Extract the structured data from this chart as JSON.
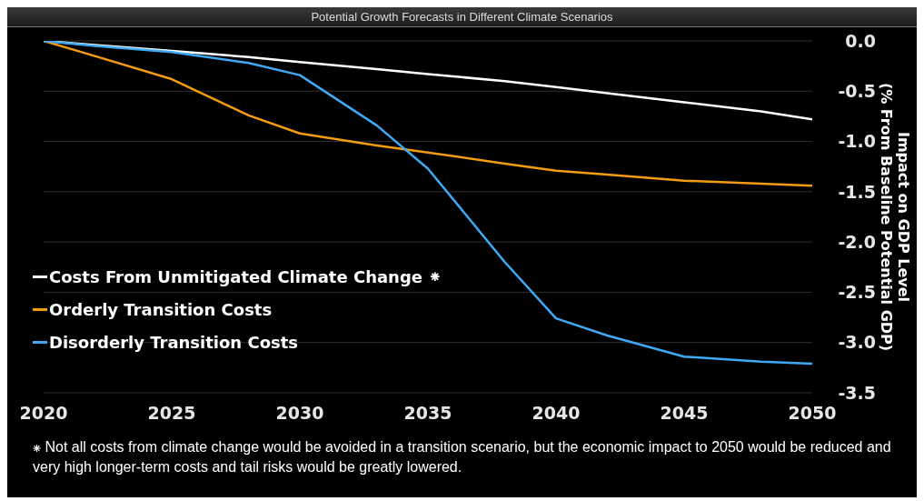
{
  "chart_data": {
    "type": "line",
    "title": "Potential Growth Forecasts in Different Climate Scenarios",
    "ylabel": "Impact on GDP Level (% From Baseline Potential GDP)",
    "x": [
      2020,
      2022,
      2025,
      2028,
      2030,
      2033,
      2035,
      2038,
      2040,
      2042,
      2045,
      2048,
      2050
    ],
    "series": [
      {
        "name": "Costs From Unmitigated Climate Change ⁕",
        "color": "#ffffff",
        "values": [
          0,
          -0.04,
          -0.1,
          -0.16,
          -0.21,
          -0.28,
          -0.33,
          -0.4,
          -0.46,
          -0.52,
          -0.61,
          -0.7,
          -0.78
        ]
      },
      {
        "name": "Orderly Transition Costs",
        "color": "#f39c12",
        "values": [
          0,
          -0.15,
          -0.38,
          -0.74,
          -0.92,
          -1.04,
          -1.11,
          -1.22,
          -1.29,
          -1.33,
          -1.39,
          -1.42,
          -1.44
        ]
      },
      {
        "name": "Disorderly Transition Costs",
        "color": "#3fa9f5",
        "values": [
          0,
          -0.05,
          -0.11,
          -0.22,
          -0.34,
          -0.84,
          -1.27,
          -2.2,
          -2.76,
          -2.93,
          -3.14,
          -3.19,
          -3.21
        ]
      }
    ],
    "xlim": [
      2020,
      2050
    ],
    "xticks": [
      2020,
      2025,
      2030,
      2035,
      2040,
      2045,
      2050
    ],
    "ylim": [
      -3.5,
      0
    ],
    "yticks": [
      {
        "value": 0,
        "label": "0.0"
      },
      -0.5,
      {
        "value": -1,
        "label": "-1.0"
      },
      -1.5,
      {
        "value": -2,
        "label": "-2.0"
      },
      -2.5,
      {
        "value": -3,
        "label": "-3.0"
      },
      -3.5
    ],
    "grid": "y",
    "legend": "bottom left",
    "marker": "none",
    "line_style": "solid",
    "annotations": [
      "⁕ Not all costs from climate change would be avoided in a transition scenario, but the economic impact to 2050 would be reduced and very high longer-term costs and tail risks would be greatly lowered."
    ]
  }
}
